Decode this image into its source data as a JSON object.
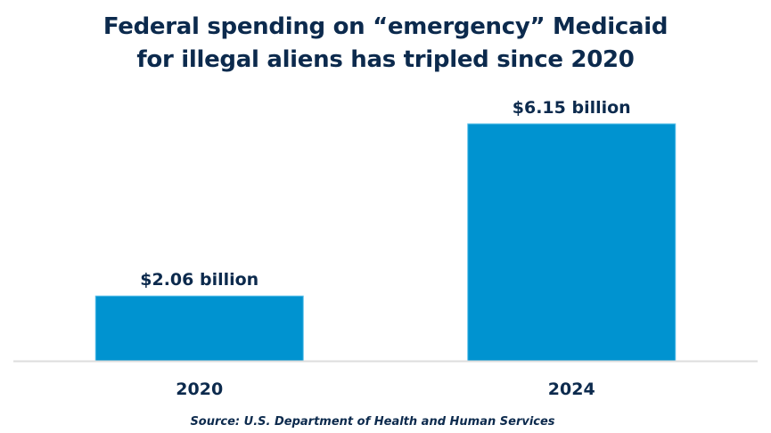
{
  "chart_data": {
    "type": "bar",
    "title_lines": [
      "Federal spending on “emergency” Medicaid",
      "for illegal aliens has tripled since 2020"
    ],
    "categories": [
      "2020",
      "2024"
    ],
    "values": [
      2.06,
      6.15
    ],
    "data_labels": [
      "$2.06 billion",
      "$6.15 billion"
    ],
    "xlabel": "",
    "ylabel": "",
    "ylim": [
      0.52,
      6.15
    ],
    "grid": false,
    "source": "Source: U.S. Department of Health and Human Services",
    "colors": {
      "bar": "#0093D0",
      "bar_edge": "#5bc0ea",
      "text": "#0c2a4d",
      "axis": "#dddddd"
    }
  }
}
